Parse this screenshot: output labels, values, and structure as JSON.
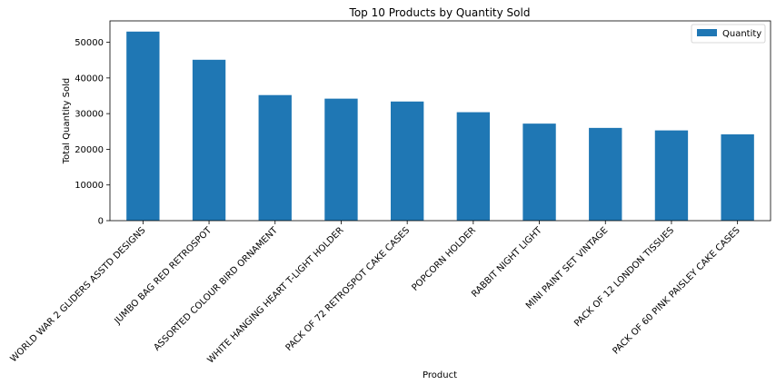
{
  "chart_data": {
    "type": "bar",
    "title": "Top 10 Products by Quantity Sold",
    "xlabel": "Product",
    "ylabel": "Total Quantity Sold",
    "ylim": [
      0,
      56000
    ],
    "yticks": [
      0,
      10000,
      20000,
      30000,
      40000,
      50000
    ],
    "grid": false,
    "legend_position": "top-right",
    "categories": [
      "WORLD WAR 2 GLIDERS ASSTD DESIGNS",
      "JUMBO BAG RED RETROSPOT",
      "ASSORTED COLOUR BIRD ORNAMENT",
      "WHITE HANGING HEART T-LIGHT HOLDER",
      "PACK OF 72 RETROSPOT CAKE CASES",
      "POPCORN HOLDER",
      "RABBIT NIGHT LIGHT",
      "MINI PAINT SET VINTAGE",
      "PACK OF 12 LONDON TISSUES",
      "PACK OF 60 PINK PAISLEY CAKE CASES"
    ],
    "series": [
      {
        "name": "Quantity",
        "color": "#1f77b4",
        "values": [
          53000,
          45100,
          35200,
          34200,
          33400,
          30400,
          27200,
          26000,
          25300,
          24200
        ]
      }
    ]
  }
}
